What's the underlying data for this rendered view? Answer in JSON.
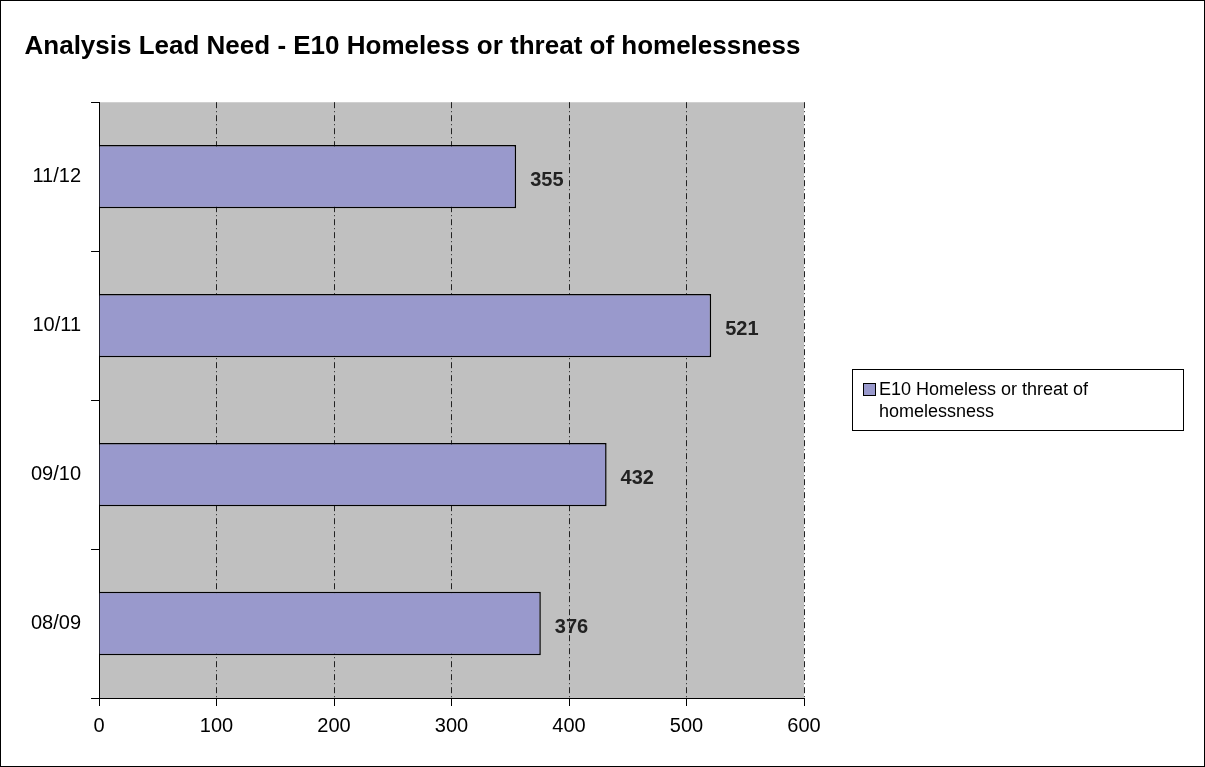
{
  "chart_data": {
    "type": "bar",
    "orientation": "horizontal",
    "title": "Analysis Lead Need - E10 Homeless or threat of homelessness",
    "categories": [
      "11/12",
      "10/11",
      "09/10",
      "08/09"
    ],
    "series": [
      {
        "name": "E10 Homeless or threat of homelessness",
        "color": "#9999cc",
        "values": [
          355,
          521,
          432,
          376
        ]
      }
    ],
    "xlim": [
      0,
      600
    ],
    "xticks": [
      0,
      100,
      200,
      300,
      400,
      500,
      600
    ],
    "grid": "x",
    "legend": "right",
    "data_labels": true
  }
}
